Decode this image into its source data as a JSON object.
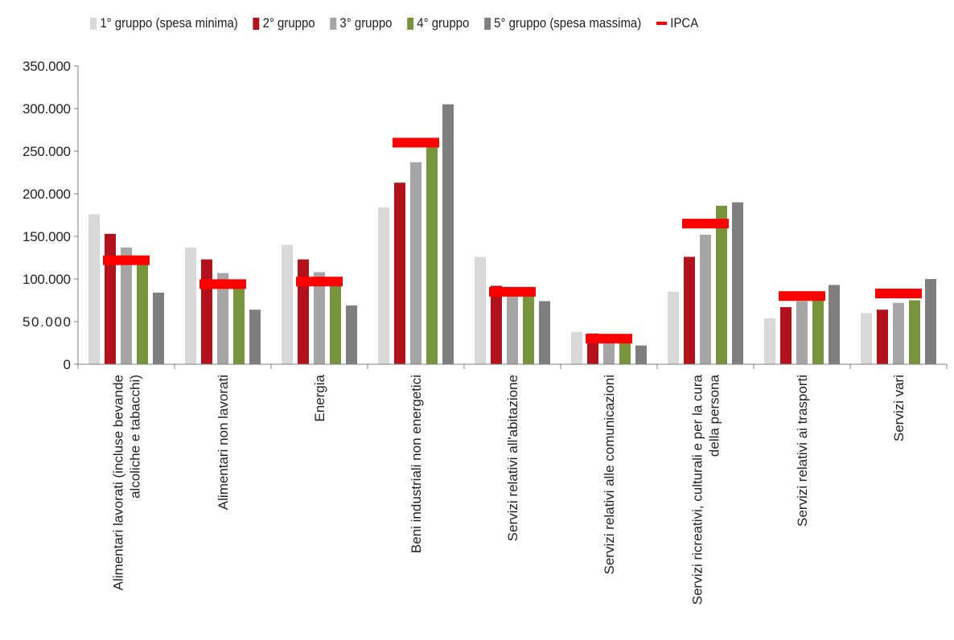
{
  "chart_data": {
    "type": "bar",
    "title": "",
    "xlabel": "",
    "ylabel": "",
    "ylim": [
      0,
      350000
    ],
    "yticks": [
      0,
      50000,
      100000,
      150000,
      200000,
      250000,
      300000,
      350000
    ],
    "ytick_labels": [
      "0",
      "50.000",
      "100.000",
      "150.000",
      "200.000",
      "250.000",
      "300.000",
      "350.000"
    ],
    "legend_position": "top",
    "grid": false,
    "categories": [
      [
        "Alimentari lavorati (incluse bevande",
        "alcoliche e tabacchi)"
      ],
      [
        "Alimentari non lavorati"
      ],
      [
        "Energia"
      ],
      [
        "Beni industriali non energetici"
      ],
      [
        "Servizi relativi all'abitazione"
      ],
      [
        "Servizi relativi alle comunicazioni"
      ],
      [
        "Servizi ricreativi, culturali e per la cura",
        "della persona"
      ],
      [
        "Servizi relativi ai trasporti"
      ],
      [
        "Servizi vari"
      ]
    ],
    "series": [
      {
        "name": "1° gruppo (spesa minima)",
        "color": "#d9d9d9",
        "values": [
          176000,
          137000,
          140000,
          184000,
          126000,
          38000,
          85000,
          54000,
          60000
        ]
      },
      {
        "name": "2° gruppo",
        "color": "#b2121b",
        "values": [
          153000,
          123000,
          123000,
          213000,
          92000,
          36000,
          126000,
          67000,
          64000
        ]
      },
      {
        "name": "3° gruppo",
        "color": "#a6a6a6",
        "values": [
          137000,
          107000,
          108000,
          237000,
          85000,
          30000,
          152000,
          74000,
          72000
        ]
      },
      {
        "name": "4° gruppo",
        "color": "#77933c",
        "values": [
          120000,
          90000,
          94000,
          260000,
          80000,
          28000,
          186000,
          78000,
          75000
        ]
      },
      {
        "name": "5° gruppo (spesa massima)",
        "color": "#7f7f7f",
        "values": [
          84000,
          64000,
          69000,
          305000,
          74000,
          22000,
          190000,
          93000,
          100000
        ]
      }
    ],
    "ipca": {
      "name": "IPCA",
      "color": "#ff0000",
      "values": [
        122000,
        94000,
        97000,
        260000,
        85000,
        30000,
        165000,
        80000,
        83000
      ]
    }
  }
}
